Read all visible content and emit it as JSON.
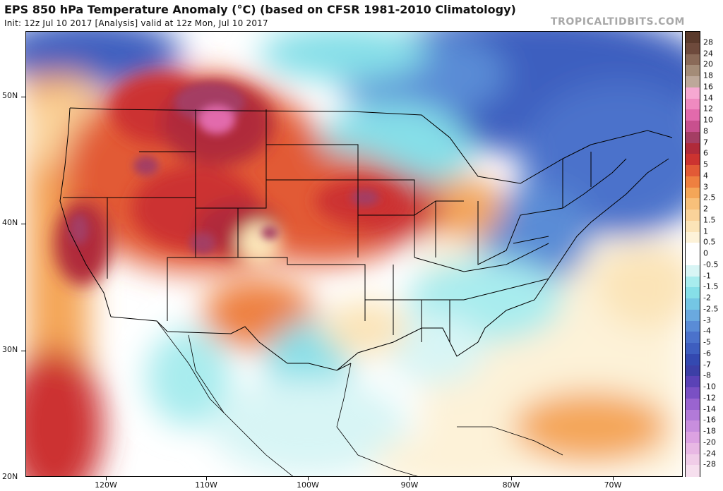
{
  "header": {
    "title": "EPS 850 hPa Temperature Anomaly (°C) (based on CFSR 1981-2010 Climatology)",
    "subtitle": "Init: 12z Jul 10 2017   [Analysis]   valid at 12z Mon, Jul 10 2017",
    "brand": "TROPICALTIDBITS.COM"
  },
  "map": {
    "lat_labels": [
      "50N",
      "40N",
      "30N",
      "20N"
    ],
    "lon_labels": [
      "120W",
      "110W",
      "100W",
      "90W",
      "80W",
      "70W"
    ],
    "colors": {
      "ocean_blank": "#ffffff",
      "border_line": "#000000",
      "coast_line": "#000000"
    }
  },
  "colorbar": {
    "labels": [
      "28",
      "24",
      "20",
      "18",
      "16",
      "14",
      "12",
      "10",
      "8",
      "7",
      "6",
      "5",
      "4",
      "3",
      "2.5",
      "2",
      "1.5",
      "1",
      "0.5",
      "0",
      "-0.5",
      "-1",
      "-1.5",
      "-2",
      "-2.5",
      "-3",
      "-4",
      "-5",
      "-6",
      "-7",
      "-8",
      "-10",
      "-12",
      "-14",
      "-16",
      "-18",
      "-20",
      "-24",
      "-28"
    ],
    "colors": [
      "#6e4a3c",
      "#8a6a58",
      "#a48c78",
      "#bda89a",
      "#f6a8d2",
      "#ef8ac0",
      "#e26aac",
      "#c8508e",
      "#a43e64",
      "#b02a3a",
      "#cc3330",
      "#e25a36",
      "#ee8040",
      "#f4a658",
      "#f8c07a",
      "#fad39a",
      "#fbe4b8",
      "#fdf2d8",
      "#ffffff",
      "#ffffff",
      "#d8f5f5",
      "#a8ecee",
      "#86dfe8",
      "#74c6e4",
      "#6aa9df",
      "#5a8cd6",
      "#4b72cb",
      "#3e5ebf",
      "#3449b0",
      "#3c3fa6",
      "#5a42b6",
      "#7a50c4",
      "#9a64d0",
      "#b27ad8",
      "#c88ede",
      "#dca2e2",
      "#e8b8e4",
      "#f0cde8",
      "#f6dfee"
    ]
  }
}
